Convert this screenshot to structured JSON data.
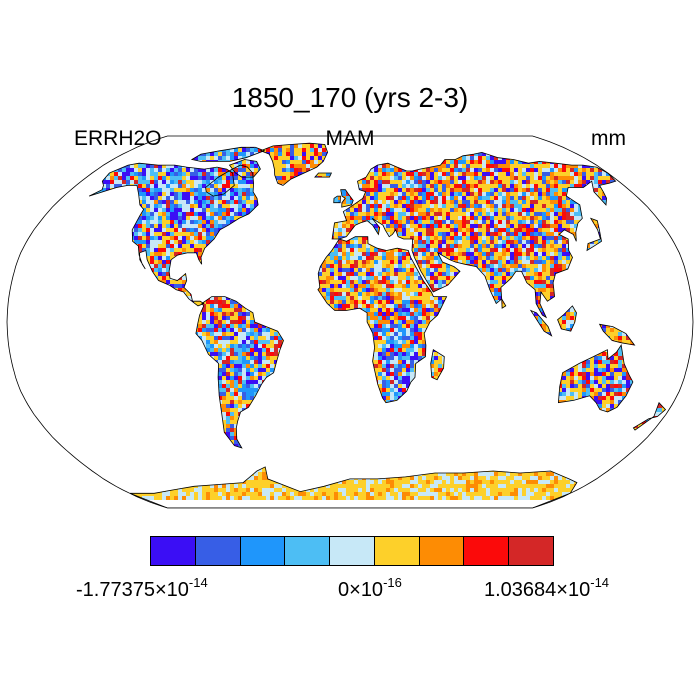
{
  "title": "1850_170 (yrs 2-3)",
  "subtitle_left": "ERRH2O",
  "subtitle_center": "MAM",
  "subtitle_right": "mm",
  "colorbar": {
    "colors": [
      "#3b0ef5",
      "#375ee6",
      "#1f96fb",
      "#4dbef4",
      "#c7e8f7",
      "#fdd02a",
      "#fd8c04",
      "#fb0a0a",
      "#d42727"
    ],
    "labels": [
      {
        "mantissa": "-1.77375",
        "times": "×",
        "base": "10",
        "exp": "-14"
      },
      {
        "mantissa": "0",
        "times": "×",
        "base": "10",
        "exp": "-16"
      },
      {
        "mantissa": "1.03684",
        "times": "×",
        "base": "10",
        "exp": "-14"
      }
    ]
  },
  "map": {
    "projection": "robinson",
    "ocean_color": "#ffffff",
    "coast_color": "#000000",
    "land_weights": [
      0.07,
      0.07,
      0.06,
      0.08,
      0.12,
      0.3,
      0.12,
      0.1,
      0.08
    ]
  }
}
